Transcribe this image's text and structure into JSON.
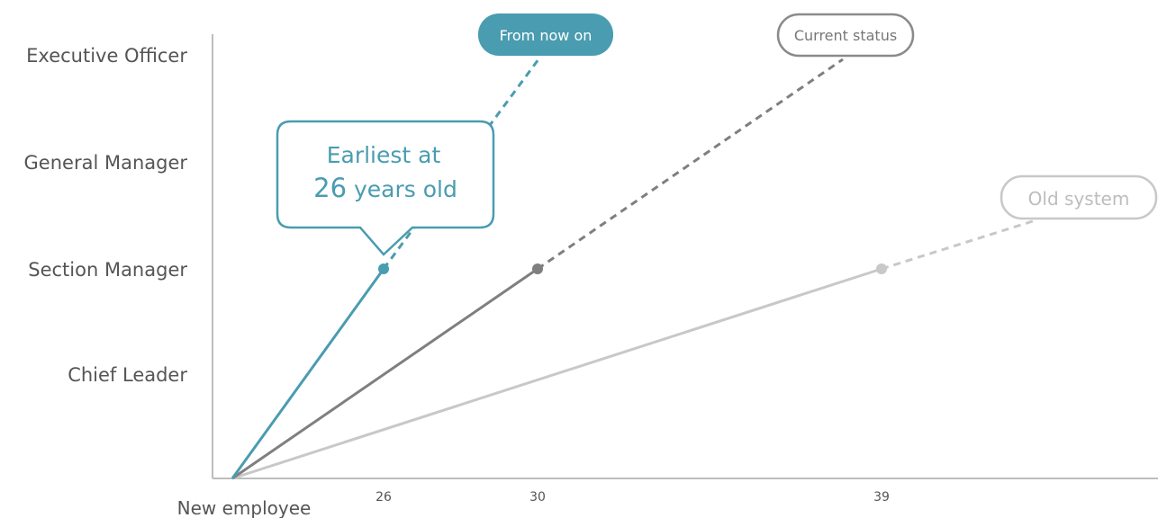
{
  "chart_data": {
    "type": "line",
    "y_levels": [
      "New employee",
      "Chief Leader",
      "Section Manager",
      "General Manager",
      "Executive Officer"
    ],
    "x_ticks": [
      26,
      30,
      39
    ],
    "series": [
      {
        "name": "From now on",
        "color": "#4a9cb0",
        "solid": [
          {
            "x": 21,
            "y": "New employee"
          },
          {
            "x": 26,
            "y": "Section Manager"
          }
        ],
        "dashed_to": "Executive Officer"
      },
      {
        "name": "Current status",
        "color": "#7f7f7f",
        "solid": [
          {
            "x": 21,
            "y": "New employee"
          },
          {
            "x": 30,
            "y": "Section Manager"
          }
        ],
        "dashed_to": "Executive Officer"
      },
      {
        "name": "Old system",
        "color": "#c8c8c8",
        "solid": [
          {
            "x": 21,
            "y": "New employee"
          },
          {
            "x": 39,
            "y": "Section Manager"
          }
        ],
        "dashed_to": "General Manager"
      }
    ],
    "callout": {
      "line1": "Earliest at",
      "number": "26",
      "line2_rest": " years old"
    },
    "grid": false
  }
}
